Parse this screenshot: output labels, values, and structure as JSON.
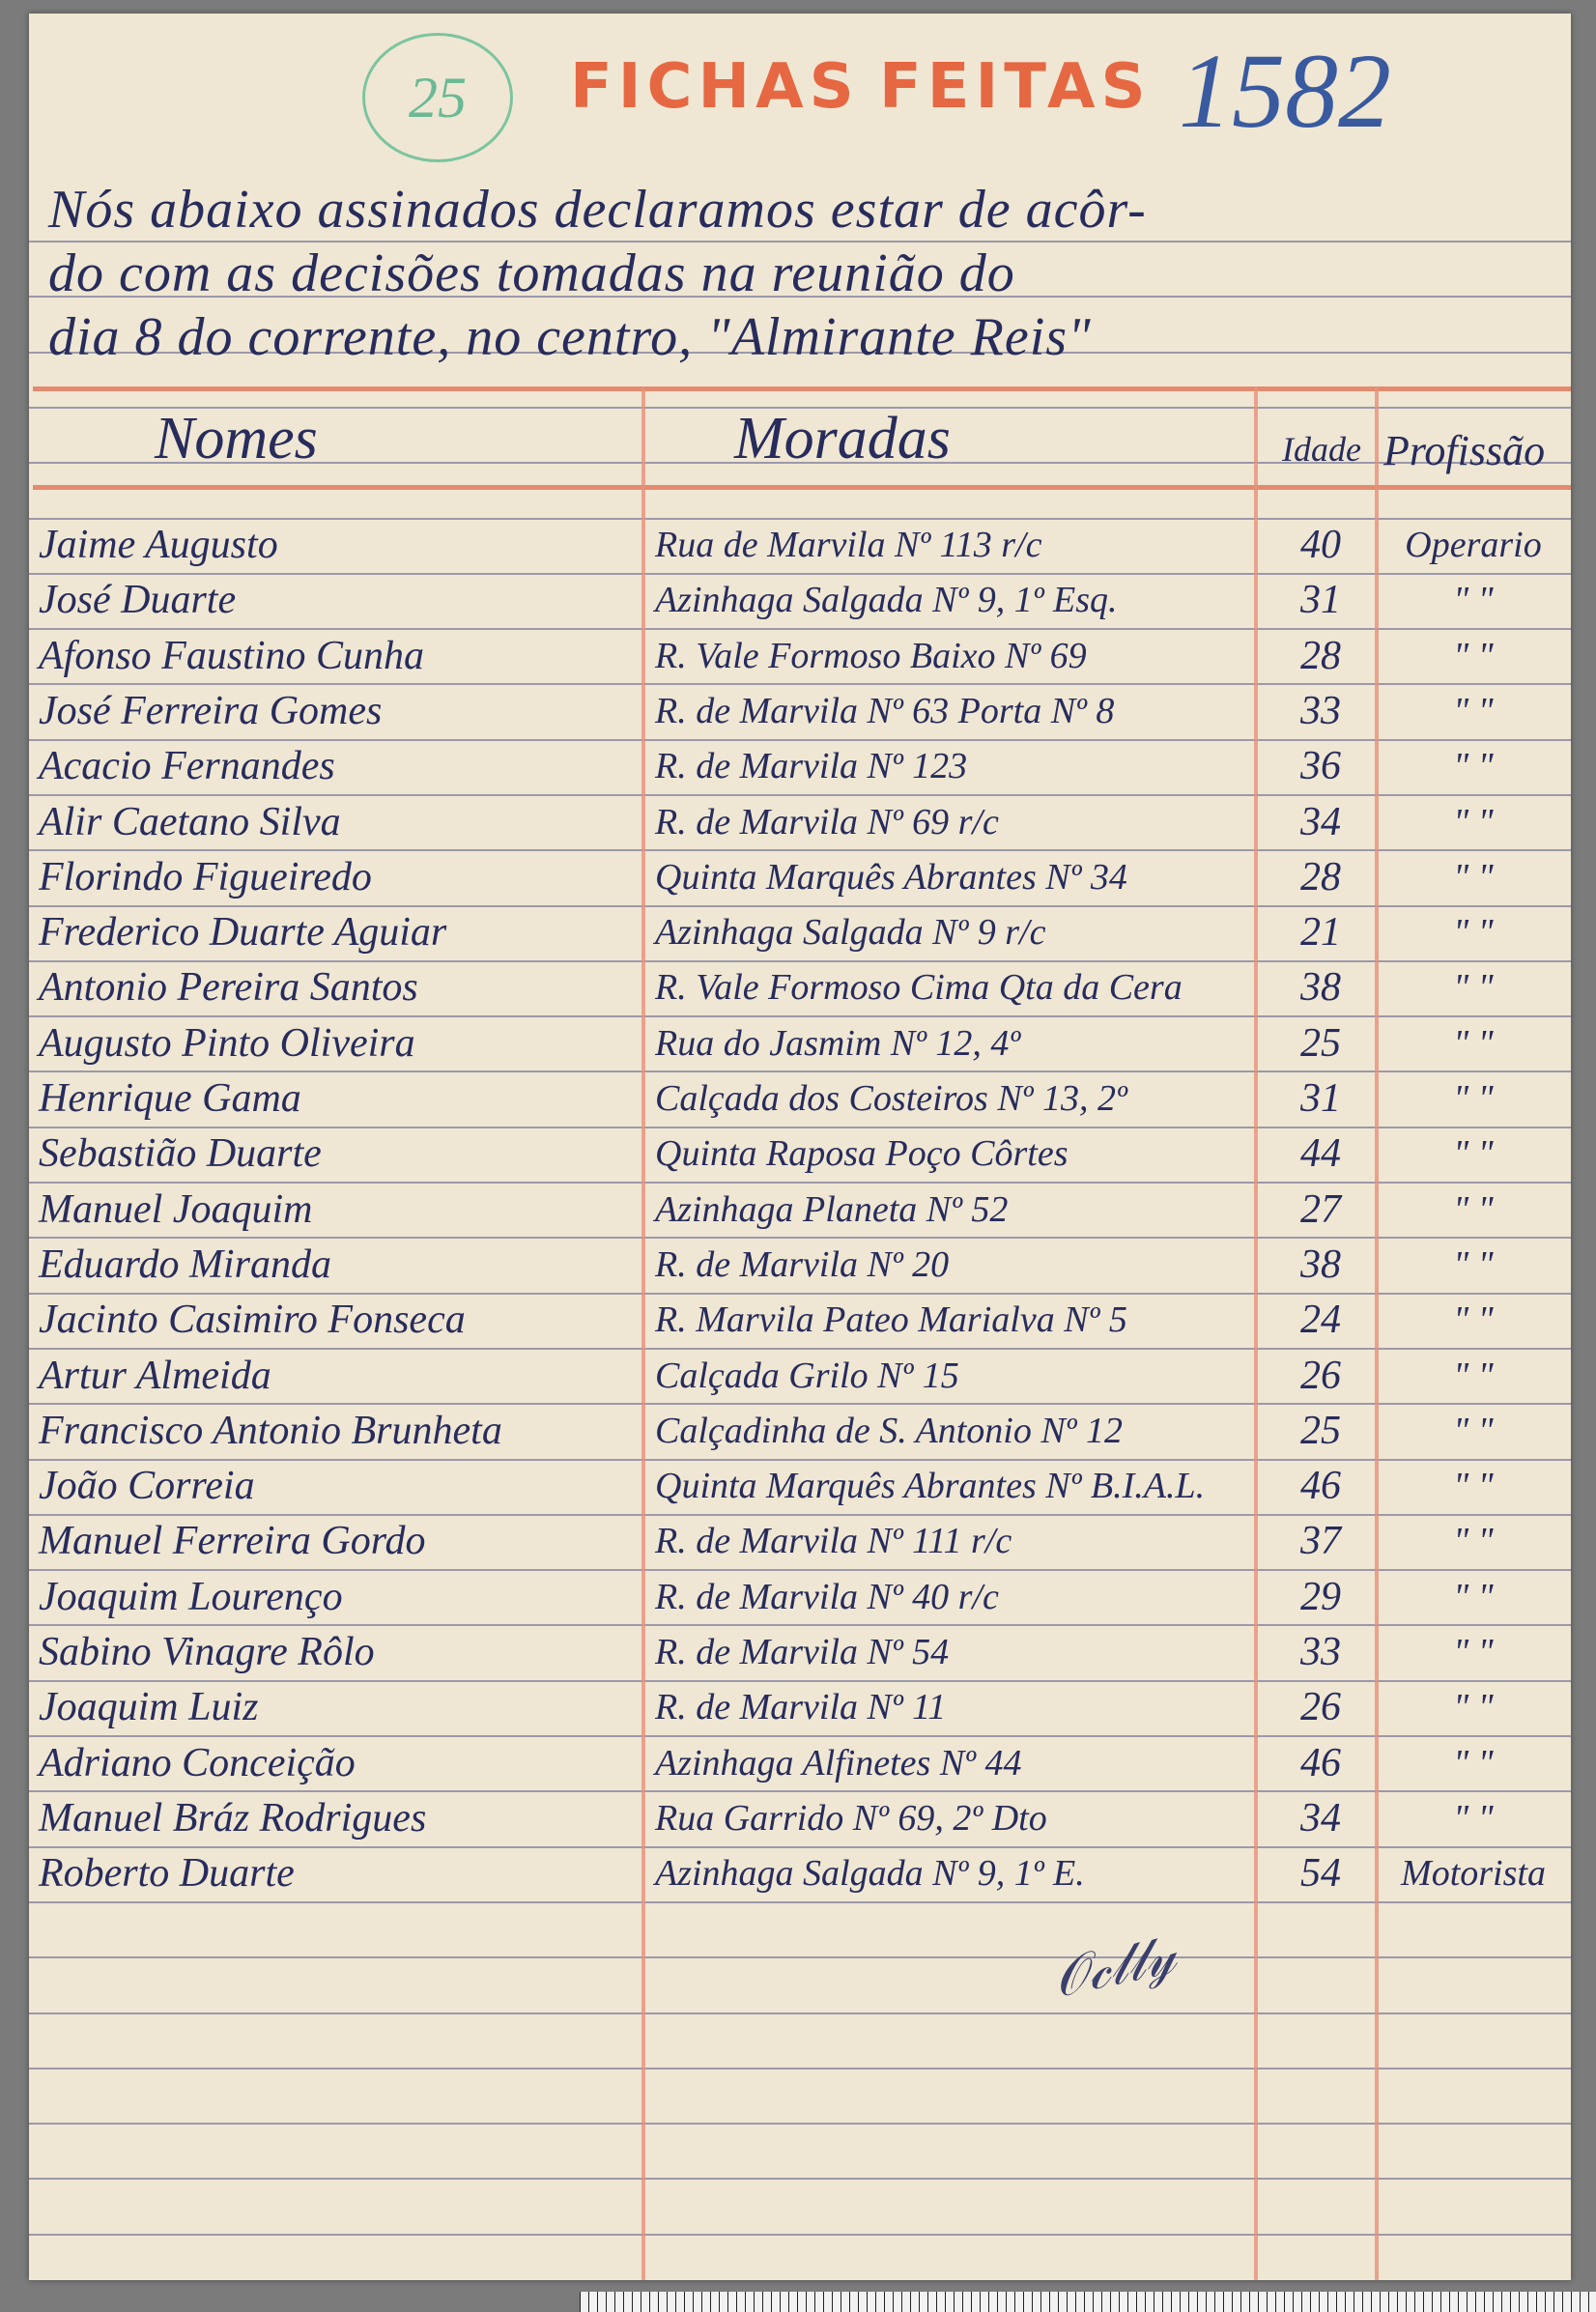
{
  "document": {
    "circled_number": "25",
    "reference_number": "1582",
    "stamp": [
      "FICHAS",
      "FEITAS"
    ],
    "intro_lines": [
      "Nós abaixo assinados declaramos estar de acôr-",
      "do com as decisões tomadas na reunião do",
      "dia 8 do corrente, no centro, \"Almirante Reis\""
    ],
    "headers": {
      "names": "Nomes",
      "addresses": "Moradas",
      "age": "Idade",
      "profession": "Profissão"
    },
    "rows": [
      {
        "name": "Jaime Augusto",
        "address": "Rua de Marvila Nº 113 r/c",
        "age": "40",
        "profession": "Operario"
      },
      {
        "name": "José Duarte",
        "address": "Azinhaga Salgada Nº 9, 1º Esq.",
        "age": "31",
        "profession": "\"  \""
      },
      {
        "name": "Afonso Faustino Cunha",
        "address": "R. Vale Formoso Baixo Nº 69",
        "age": "28",
        "profession": "\"  \""
      },
      {
        "name": "José Ferreira Gomes",
        "address": "R. de Marvila Nº 63 Porta Nº 8",
        "age": "33",
        "profession": "\"  \""
      },
      {
        "name": "Acacio Fernandes",
        "address": "R. de Marvila Nº 123",
        "age": "36",
        "profession": "\"  \""
      },
      {
        "name": "Alir Caetano Silva",
        "address": "R. de Marvila Nº 69 r/c",
        "age": "34",
        "profession": "\"  \""
      },
      {
        "name": "Florindo Figueiredo",
        "address": "Quinta Marquês Abrantes Nº 34",
        "age": "28",
        "profession": "\"  \""
      },
      {
        "name": "Frederico Duarte Aguiar",
        "address": "Azinhaga Salgada Nº 9 r/c",
        "age": "21",
        "profession": "\"  \""
      },
      {
        "name": "Antonio Pereira Santos",
        "address": "R. Vale Formoso Cima Qta da Cera",
        "age": "38",
        "profession": "\"  \""
      },
      {
        "name": "Augusto Pinto Oliveira",
        "address": "Rua do Jasmim Nº 12, 4º",
        "age": "25",
        "profession": "\"  \""
      },
      {
        "name": "Henrique Gama",
        "address": "Calçada dos Costeiros Nº 13, 2º",
        "age": "31",
        "profession": "\"  \""
      },
      {
        "name": "Sebastião Duarte",
        "address": "Quinta Raposa Poço Côrtes",
        "age": "44",
        "profession": "\"  \""
      },
      {
        "name": "Manuel Joaquim",
        "address": "Azinhaga Planeta Nº 52",
        "age": "27",
        "profession": "\"  \""
      },
      {
        "name": "Eduardo Miranda",
        "address": "R. de Marvila Nº 20",
        "age": "38",
        "profession": "\"  \""
      },
      {
        "name": "Jacinto Casimiro Fonseca",
        "address": "R. Marvila Pateo Marialva Nº 5",
        "age": "24",
        "profession": "\"  \""
      },
      {
        "name": "Artur Almeida",
        "address": "Calçada Grilo Nº 15",
        "age": "26",
        "profession": "\"  \""
      },
      {
        "name": "Francisco Antonio Brunheta",
        "address": "Calçadinha de S. Antonio Nº 12",
        "age": "25",
        "profession": "\"  \""
      },
      {
        "name": "João Correia",
        "address": "Quinta Marquês Abrantes Nº B.I.A.L.",
        "age": "46",
        "profession": "\"  \""
      },
      {
        "name": "Manuel Ferreira Gordo",
        "address": "R. de Marvila Nº 111 r/c",
        "age": "37",
        "profession": "\"  \""
      },
      {
        "name": "Joaquim Lourenço",
        "address": "R. de Marvila Nº 40 r/c",
        "age": "29",
        "profession": "\"  \""
      },
      {
        "name": "Sabino Vinagre Rôlo",
        "address": "R. de Marvila Nº 54",
        "age": "33",
        "profession": "\"  \""
      },
      {
        "name": "Joaquim Luiz",
        "address": "R. de Marvila Nº 11",
        "age": "26",
        "profession": "\"  \""
      },
      {
        "name": "Adriano Conceição",
        "address": "Azinhaga Alfinetes Nº 44",
        "age": "46",
        "profession": "\"  \""
      },
      {
        "name": "Manuel Bráz Rodrigues",
        "address": "Rua Garrido Nº 69, 2º Dto",
        "age": "34",
        "profession": "\"  \""
      },
      {
        "name": "Roberto Duarte",
        "address": "Azinhaga Salgada Nº 9, 1º E.",
        "age": "54",
        "profession": "Motorista"
      }
    ],
    "signature": "signature"
  },
  "colors": {
    "ink": "#272c5c",
    "stamp": "#e4532b",
    "rule_red": "#e07a5f",
    "paper": "#efe7d3"
  }
}
